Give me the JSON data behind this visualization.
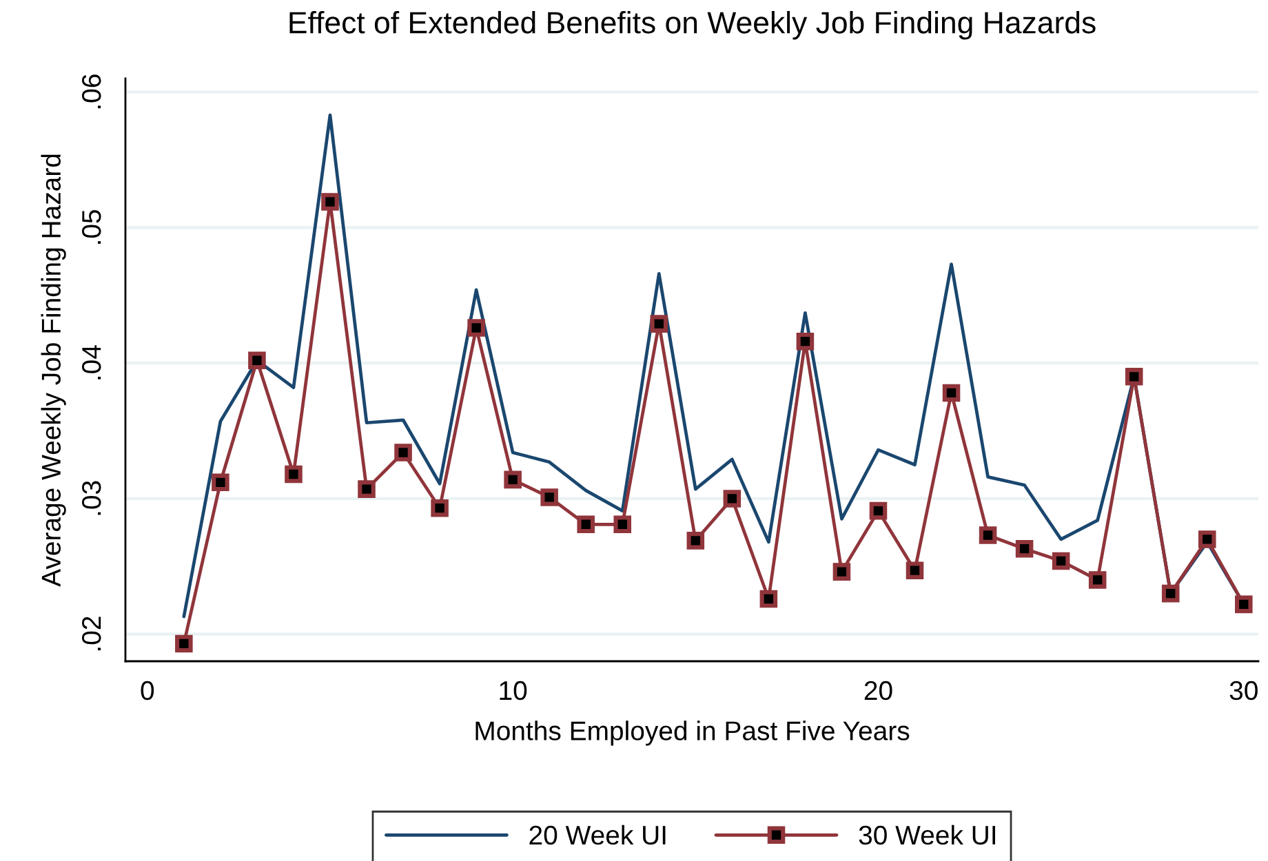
{
  "chart_data": {
    "type": "line",
    "title": "Effect of Extended Benefits on Weekly Job Finding Hazards",
    "xlabel": "Months Employed in Past Five Years",
    "ylabel": "Average Weekly Job Finding Hazard",
    "x": [
      1,
      2,
      3,
      4,
      5,
      6,
      7,
      8,
      9,
      10,
      11,
      12,
      13,
      14,
      15,
      16,
      17,
      18,
      19,
      20,
      21,
      22,
      23,
      24,
      25,
      26,
      27,
      28,
      29,
      30
    ],
    "series": [
      {
        "name": "20 Week UI",
        "color": "#1a476f",
        "marker": "none",
        "values": [
          0.0213,
          0.0357,
          0.0402,
          0.0382,
          0.0583,
          0.0356,
          0.0358,
          0.0311,
          0.0454,
          0.0334,
          0.0327,
          0.0306,
          0.0291,
          0.0466,
          0.0307,
          0.0329,
          0.0268,
          0.0437,
          0.0285,
          0.0336,
          0.0325,
          0.0473,
          0.0316,
          0.031,
          0.027,
          0.0284,
          0.039,
          0.023,
          0.0268,
          0.0222
        ]
      },
      {
        "name": "30 Week UI",
        "color": "#90353b",
        "marker": "square",
        "values": [
          0.0193,
          0.0312,
          0.0402,
          0.0318,
          0.0519,
          0.0307,
          0.0334,
          0.0293,
          0.0426,
          0.0314,
          0.0301,
          0.0281,
          0.0281,
          0.0429,
          0.0269,
          0.03,
          0.0226,
          0.0416,
          0.0246,
          0.0291,
          0.0247,
          0.0378,
          0.0273,
          0.0263,
          0.0254,
          0.024,
          0.039,
          0.023,
          0.027,
          0.0222
        ]
      }
    ],
    "xlim": [
      -0.6,
      30.4
    ],
    "xticks": [
      0,
      10,
      20,
      30
    ],
    "ylim": [
      0.018,
      0.061
    ],
    "yticks": [
      {
        "value": 0.02,
        "label": ".02"
      },
      {
        "value": 0.03,
        "label": ".03"
      },
      {
        "value": 0.04,
        "label": ".04"
      },
      {
        "value": 0.05,
        "label": ".05"
      },
      {
        "value": 0.06,
        "label": ".06"
      }
    ],
    "grid": "y",
    "legend": "bottom"
  }
}
